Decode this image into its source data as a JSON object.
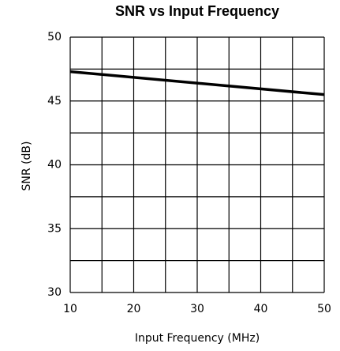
{
  "chart_data": {
    "type": "line",
    "title": "SNR vs Input Frequency",
    "xlabel": "Input Frequency (MHz)",
    "ylabel": "SNR (dB)",
    "series": [
      {
        "name": "SNR",
        "color": "#000000",
        "x": [
          10,
          50
        ],
        "values": [
          47.3,
          45.5
        ]
      }
    ],
    "xlim": [
      10,
      50
    ],
    "xticks": [
      10,
      20,
      30,
      40,
      50
    ],
    "ylim": [
      30,
      50
    ],
    "yticks": [
      30,
      35,
      40,
      45,
      50
    ],
    "xgrid": [
      10,
      15,
      20,
      25,
      30,
      35,
      40,
      45,
      50
    ],
    "ygrid": [
      30,
      32.5,
      35,
      37.5,
      40,
      42.5,
      45,
      47.5,
      50
    ],
    "grid": true
  }
}
